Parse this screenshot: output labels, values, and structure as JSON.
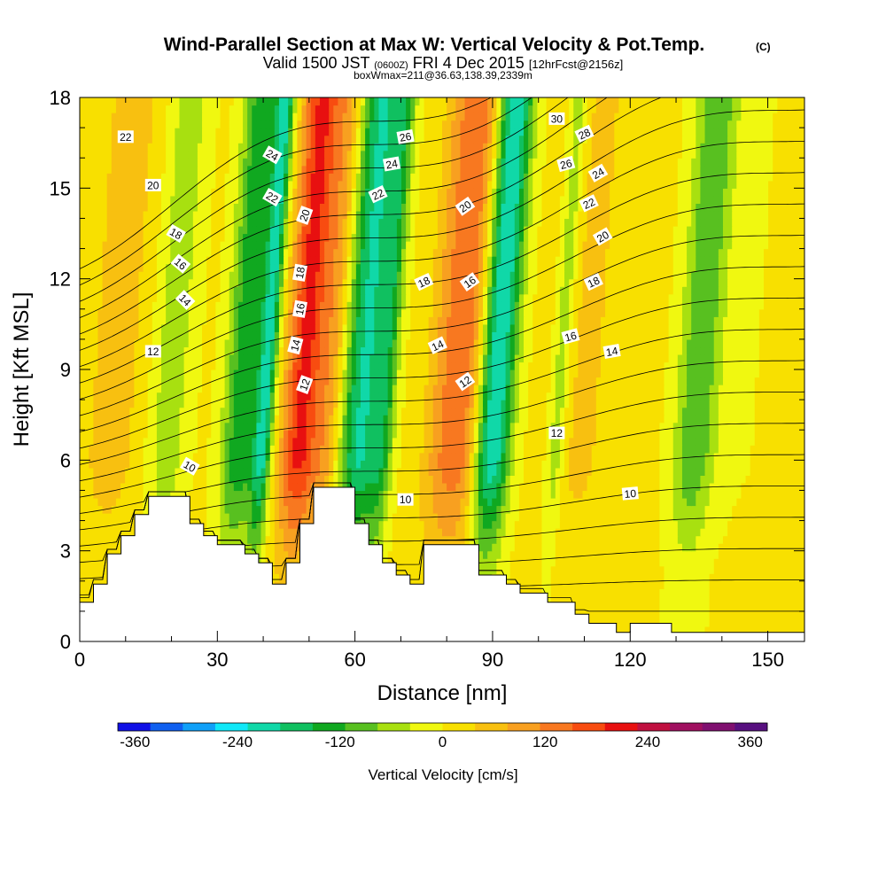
{
  "chart_data": {
    "type": "heatmap",
    "title": "Wind-Parallel Section at Max W: Vertical Velocity & Pot.Temp.",
    "title_mark": "(C)",
    "subtitle": {
      "part1": "Valid 1500 JST",
      "part2": "(0600Z)",
      "part3": "FRI 4 Dec 2015",
      "part4": "[12hrFcst@2156z]"
    },
    "subtitle2": "boxWmax=211@36.63,138.39,2339m",
    "xlabel": "Distance [nm]",
    "ylabel": "Height [Kft MSL]",
    "xlim": [
      0,
      158
    ],
    "ylim": [
      0,
      18
    ],
    "x_ticks": [
      0,
      30,
      60,
      90,
      120,
      150
    ],
    "y_ticks": [
      0,
      3,
      6,
      9,
      12,
      15,
      18
    ],
    "colorbar": {
      "label": "Vertical Velocity [cm/s]",
      "min": -380,
      "max": 380,
      "step": 40,
      "tick_values": [
        -360,
        -240,
        -120,
        0,
        120,
        240,
        360
      ],
      "colors": [
        "#1010e6",
        "#1060f0",
        "#10a0f8",
        "#10e8f8",
        "#10d8a8",
        "#10c060",
        "#10a820",
        "#58c020",
        "#a8e010",
        "#f0f810",
        "#f8e000",
        "#f8c010",
        "#f8a020",
        "#f87820",
        "#f84c10",
        "#e81010",
        "#c01040",
        "#a01060",
        "#801070",
        "#581080"
      ]
    },
    "updraft_bands": [
      {
        "x": 20,
        "w": 9,
        "min": -45
      },
      {
        "x": 36,
        "w": 8,
        "min": -135
      },
      {
        "x": 41,
        "w": 4,
        "min": -175
      },
      {
        "x": 49,
        "w": 8,
        "max": 235
      },
      {
        "x": 55,
        "w": 6,
        "max": 115
      },
      {
        "x": 62,
        "w": 9,
        "min": -185
      },
      {
        "x": 67,
        "w": 5,
        "min": -90
      },
      {
        "x": 80,
        "w": 8,
        "max": 120
      },
      {
        "x": 85,
        "w": 8,
        "max": 150
      },
      {
        "x": 91,
        "w": 8,
        "min": -230
      },
      {
        "x": 8,
        "w": 14,
        "max": 75
      },
      {
        "x": 105,
        "w": 4,
        "min": -55
      },
      {
        "x": 110,
        "w": 12,
        "max": 70
      },
      {
        "x": 135,
        "w": 9,
        "min": -90
      },
      {
        "x": 142,
        "w": 18,
        "max": 15
      }
    ],
    "terrain": {
      "x": [
        0,
        3,
        3,
        6,
        6,
        9,
        9,
        12,
        12,
        15,
        15,
        18,
        18,
        24,
        24,
        27,
        27,
        30,
        30,
        36,
        36,
        39,
        39,
        42,
        42,
        45,
        45,
        48,
        48,
        51,
        51,
        54,
        54,
        60,
        60,
        63,
        63,
        66,
        66,
        69,
        69,
        72,
        72,
        75,
        75,
        84,
        84,
        87,
        87,
        93,
        93,
        96,
        96,
        102,
        102,
        108,
        108,
        111,
        111,
        114,
        114,
        117,
        117,
        120,
        120,
        129,
        129,
        142,
        142,
        158
      ],
      "y": [
        1.3,
        1.3,
        1.9,
        1.9,
        2.9,
        2.9,
        3.5,
        3.5,
        4.2,
        4.2,
        4.8,
        4.8,
        4.8,
        4.8,
        3.9,
        3.9,
        3.5,
        3.5,
        3.2,
        3.2,
        2.9,
        2.9,
        2.6,
        2.6,
        1.9,
        1.9,
        2.6,
        2.6,
        3.9,
        3.9,
        5.1,
        5.1,
        5.1,
        5.1,
        3.9,
        3.9,
        3.2,
        3.2,
        2.6,
        2.6,
        2.2,
        2.2,
        1.9,
        1.9,
        3.2,
        3.2,
        3.2,
        3.2,
        2.2,
        2.2,
        1.9,
        1.9,
        1.6,
        1.6,
        1.3,
        1.3,
        0.9,
        0.9,
        0.6,
        0.6,
        0.6,
        0.6,
        0.3,
        0.3,
        0.6,
        0.6,
        0.3,
        0.3,
        0.3,
        0.3
      ]
    },
    "potential_temperature_labels": [
      {
        "text": "22",
        "x": 10,
        "y": 16.7,
        "angle": 0
      },
      {
        "text": "20",
        "x": 16,
        "y": 15.1,
        "angle": 0
      },
      {
        "text": "18",
        "x": 21,
        "y": 13.5,
        "angle": 30
      },
      {
        "text": "16",
        "x": 22,
        "y": 12.5,
        "angle": 40
      },
      {
        "text": "14",
        "x": 23,
        "y": 11.3,
        "angle": 45
      },
      {
        "text": "12",
        "x": 16,
        "y": 9.6,
        "angle": 0
      },
      {
        "text": "10",
        "x": 24,
        "y": 5.8,
        "angle": 30
      },
      {
        "text": "24",
        "x": 42,
        "y": 16.1,
        "angle": 30
      },
      {
        "text": "22",
        "x": 42,
        "y": 14.7,
        "angle": 30
      },
      {
        "text": "20",
        "x": 49,
        "y": 14.1,
        "angle": -70
      },
      {
        "text": "18",
        "x": 48,
        "y": 12.2,
        "angle": -80
      },
      {
        "text": "16",
        "x": 48,
        "y": 11.0,
        "angle": -80
      },
      {
        "text": "14",
        "x": 47,
        "y": 9.8,
        "angle": -75
      },
      {
        "text": "12",
        "x": 49,
        "y": 8.5,
        "angle": -70
      },
      {
        "text": "26",
        "x": 71,
        "y": 16.7,
        "angle": -10
      },
      {
        "text": "24",
        "x": 68,
        "y": 15.8,
        "angle": -10
      },
      {
        "text": "22",
        "x": 65,
        "y": 14.8,
        "angle": -25
      },
      {
        "text": "18",
        "x": 75,
        "y": 11.9,
        "angle": -25
      },
      {
        "text": "14",
        "x": 78,
        "y": 9.8,
        "angle": -25
      },
      {
        "text": "10",
        "x": 71,
        "y": 4.7,
        "angle": 0
      },
      {
        "text": "20",
        "x": 84,
        "y": 14.4,
        "angle": -35
      },
      {
        "text": "16",
        "x": 85,
        "y": 11.9,
        "angle": -35
      },
      {
        "text": "12",
        "x": 84,
        "y": 8.6,
        "angle": -35
      },
      {
        "text": "30",
        "x": 104,
        "y": 17.3,
        "angle": 0
      },
      {
        "text": "28",
        "x": 110,
        "y": 16.8,
        "angle": -25
      },
      {
        "text": "26",
        "x": 106,
        "y": 15.8,
        "angle": -15
      },
      {
        "text": "24",
        "x": 113,
        "y": 15.5,
        "angle": -30
      },
      {
        "text": "22",
        "x": 111,
        "y": 14.5,
        "angle": -25
      },
      {
        "text": "20",
        "x": 114,
        "y": 13.4,
        "angle": -30
      },
      {
        "text": "18",
        "x": 112,
        "y": 11.9,
        "angle": -25
      },
      {
        "text": "16",
        "x": 107,
        "y": 10.1,
        "angle": -15
      },
      {
        "text": "14",
        "x": 116,
        "y": 9.6,
        "angle": -10
      },
      {
        "text": "12",
        "x": 104,
        "y": 6.9,
        "angle": 0
      },
      {
        "text": "10",
        "x": 120,
        "y": 4.9,
        "angle": -5
      }
    ]
  }
}
